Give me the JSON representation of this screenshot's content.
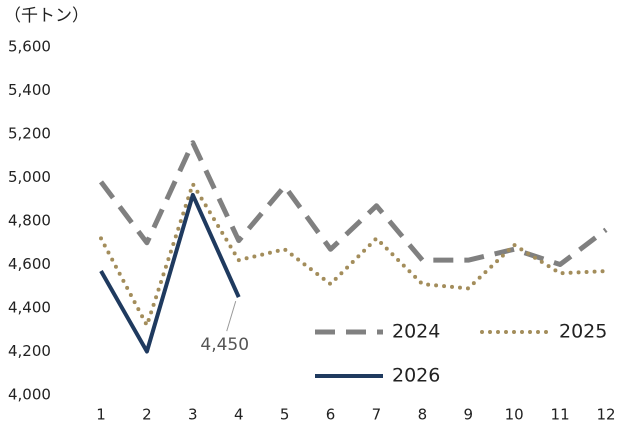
{
  "chart_data": {
    "type": "line",
    "ylabel": "（千トン）",
    "categories": [
      "1",
      "2",
      "3",
      "4",
      "5",
      "6",
      "7",
      "8",
      "9",
      "10",
      "11",
      "12"
    ],
    "series": [
      {
        "name": "2024",
        "color": "#808080",
        "style": "dashed",
        "values": [
          4980,
          4700,
          5160,
          4710,
          4960,
          4670,
          4870,
          4620,
          4620,
          4670,
          4600,
          4760
        ]
      },
      {
        "name": "2025",
        "color": "#a38d5b",
        "style": "dotted",
        "values": [
          4720,
          4320,
          4970,
          4620,
          4670,
          4510,
          4720,
          4510,
          4490,
          4690,
          4560,
          4570
        ]
      },
      {
        "name": "2026",
        "color": "#1f3a5f",
        "style": "solid",
        "values": [
          4570,
          4200,
          4920,
          4450,
          null,
          null,
          null,
          null,
          null,
          null,
          null,
          null
        ],
        "value_labels": [
          null,
          null,
          null,
          "4,450",
          null,
          null,
          null,
          null,
          null,
          null,
          null,
          null
        ]
      }
    ],
    "ylim": [
      4000,
      5600
    ],
    "yticks": [
      {
        "value": 4000,
        "label": "4,000"
      },
      {
        "value": 4200,
        "label": "4,200"
      },
      {
        "value": 4400,
        "label": "4,400"
      },
      {
        "value": 4600,
        "label": "4,600"
      },
      {
        "value": 4800,
        "label": "4,800"
      },
      {
        "value": 5000,
        "label": "5,000"
      },
      {
        "value": 5200,
        "label": "5,200"
      },
      {
        "value": 5400,
        "label": "5,400"
      },
      {
        "value": 5600,
        "label": "5,600"
      }
    ],
    "grid": false,
    "legend": "lower right"
  }
}
